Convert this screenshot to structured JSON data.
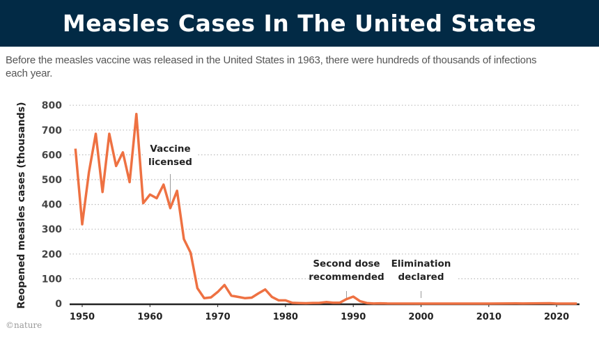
{
  "header": {
    "title": "Measles Cases In The United States"
  },
  "subtitle": "Before the measles vaccine was released in the United States in 1963, there were hundreds of thousands of infections each year.",
  "credit": "©nature",
  "colors": {
    "title_bar": "#022a45",
    "line": "#ee7142",
    "grid": "#bbbbbb",
    "axis": "#222222"
  },
  "chart_data": {
    "type": "line",
    "title": "",
    "xlabel": "",
    "ylabel": "Reopened measles cases (thousands)",
    "xlim": [
      1948,
      2023
    ],
    "ylim": [
      0,
      800
    ],
    "grid": "horizontal dotted",
    "yticks": [
      "0",
      "100",
      "200",
      "300",
      "400",
      "500",
      "600",
      "700",
      "800"
    ],
    "xticks": [
      "1950",
      "1960",
      "1970",
      "1980",
      "1990",
      "2000",
      "2010",
      "2020"
    ],
    "x": [
      1949,
      1950,
      1951,
      1952,
      1953,
      1954,
      1955,
      1956,
      1957,
      1958,
      1959,
      1960,
      1961,
      1962,
      1963,
      1964,
      1965,
      1966,
      1967,
      1968,
      1969,
      1970,
      1971,
      1972,
      1973,
      1974,
      1975,
      1976,
      1977,
      1978,
      1979,
      1980,
      1981,
      1982,
      1983,
      1984,
      1985,
      1986,
      1987,
      1988,
      1989,
      1990,
      1991,
      1992,
      1993,
      1994,
      1995,
      2000,
      2005,
      2010,
      2014,
      2015,
      2019,
      2020,
      2023
    ],
    "values": [
      625,
      320,
      530,
      685,
      450,
      685,
      555,
      610,
      490,
      765,
      405,
      440,
      425,
      480,
      385,
      455,
      260,
      205,
      62,
      22,
      25,
      47,
      75,
      32,
      27,
      22,
      24,
      41,
      57,
      27,
      13,
      13,
      3,
      2,
      1.5,
      2.6,
      2.8,
      6.3,
      3.7,
      3.4,
      18,
      28,
      9.6,
      2.2,
      0.3,
      1,
      0.3,
      0.1,
      0.1,
      0.1,
      0.7,
      0.2,
      1.3,
      0.1,
      0.1
    ],
    "annotations": [
      {
        "year": 1963,
        "lines": [
          "Vaccine",
          "licensed"
        ]
      },
      {
        "year": 1989,
        "lines": [
          "Second dose",
          "recommended"
        ]
      },
      {
        "year": 2000,
        "lines": [
          "Elimination",
          "declared"
        ]
      }
    ]
  }
}
